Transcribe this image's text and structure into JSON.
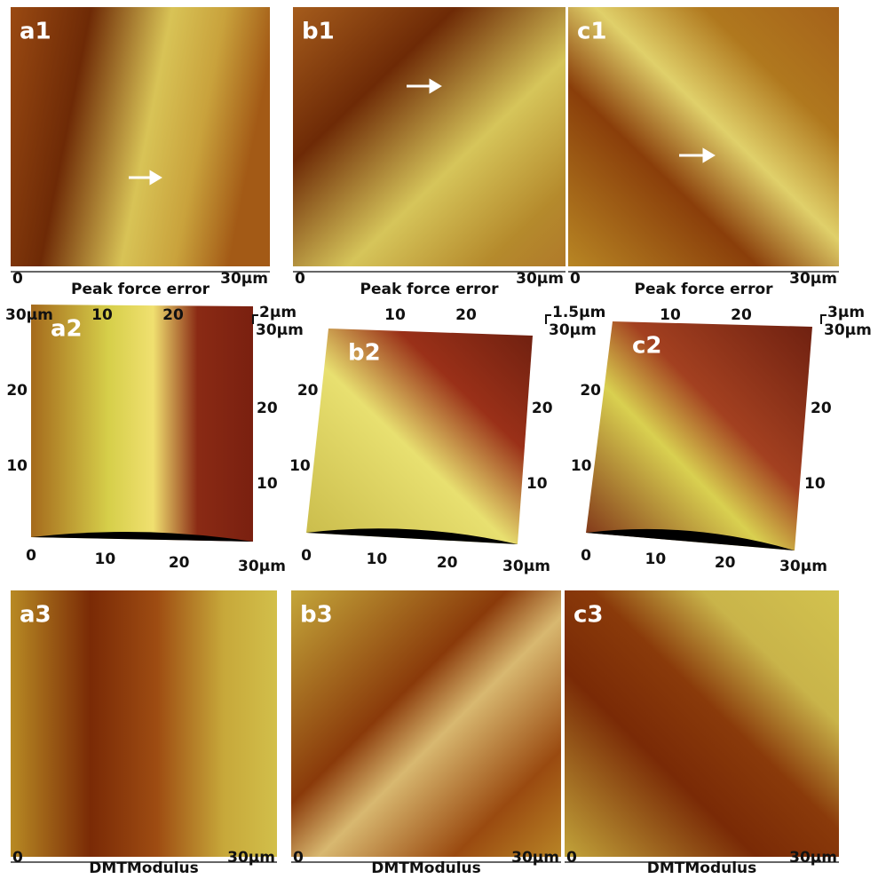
{
  "panels_2d": [
    {
      "label": "a1",
      "start": "0",
      "caption": "Peak force error",
      "end": "30µm"
    },
    {
      "label": "b1",
      "start": "0",
      "caption": "Peak force error",
      "end": "30µm"
    },
    {
      "label": "c1",
      "start": "0",
      "caption": "Peak force error",
      "end": "30µm"
    }
  ],
  "panels_3d": [
    {
      "label": "a2",
      "top_left": "30µm",
      "top_ticks": [
        "10",
        "20"
      ],
      "z_scale": "2µm",
      "right_top": "30µm",
      "left_ticks": [
        "20",
        "10"
      ],
      "right_ticks": [
        "20",
        "10"
      ],
      "bottom_ticks": [
        "0",
        "10",
        "20",
        "30µm"
      ]
    },
    {
      "label": "b2",
      "top_ticks": [
        "10",
        "20"
      ],
      "z_scale": "1.5µm",
      "right_top": "30µm",
      "left_ticks": [
        "20",
        "10"
      ],
      "right_ticks": [
        "20",
        "10"
      ],
      "bottom_ticks": [
        "0",
        "10",
        "20",
        "30µm"
      ]
    },
    {
      "label": "c2",
      "top_ticks": [
        "10",
        "20"
      ],
      "z_scale": "3µm",
      "right_top": "30µm",
      "left_ticks": [
        "20",
        "10"
      ],
      "right_ticks": [
        "20",
        "10"
      ],
      "bottom_ticks": [
        "0",
        "10",
        "20",
        "30µm"
      ]
    }
  ],
  "panels_modulus": [
    {
      "label": "a3",
      "start": "0",
      "caption": "DMTModulus",
      "end": "30µm"
    },
    {
      "label": "b3",
      "start": "0",
      "caption": "DMTModulus",
      "end": "30µm"
    },
    {
      "label": "c3",
      "start": "0",
      "caption": "DMTModulus",
      "end": "30µm"
    }
  ]
}
